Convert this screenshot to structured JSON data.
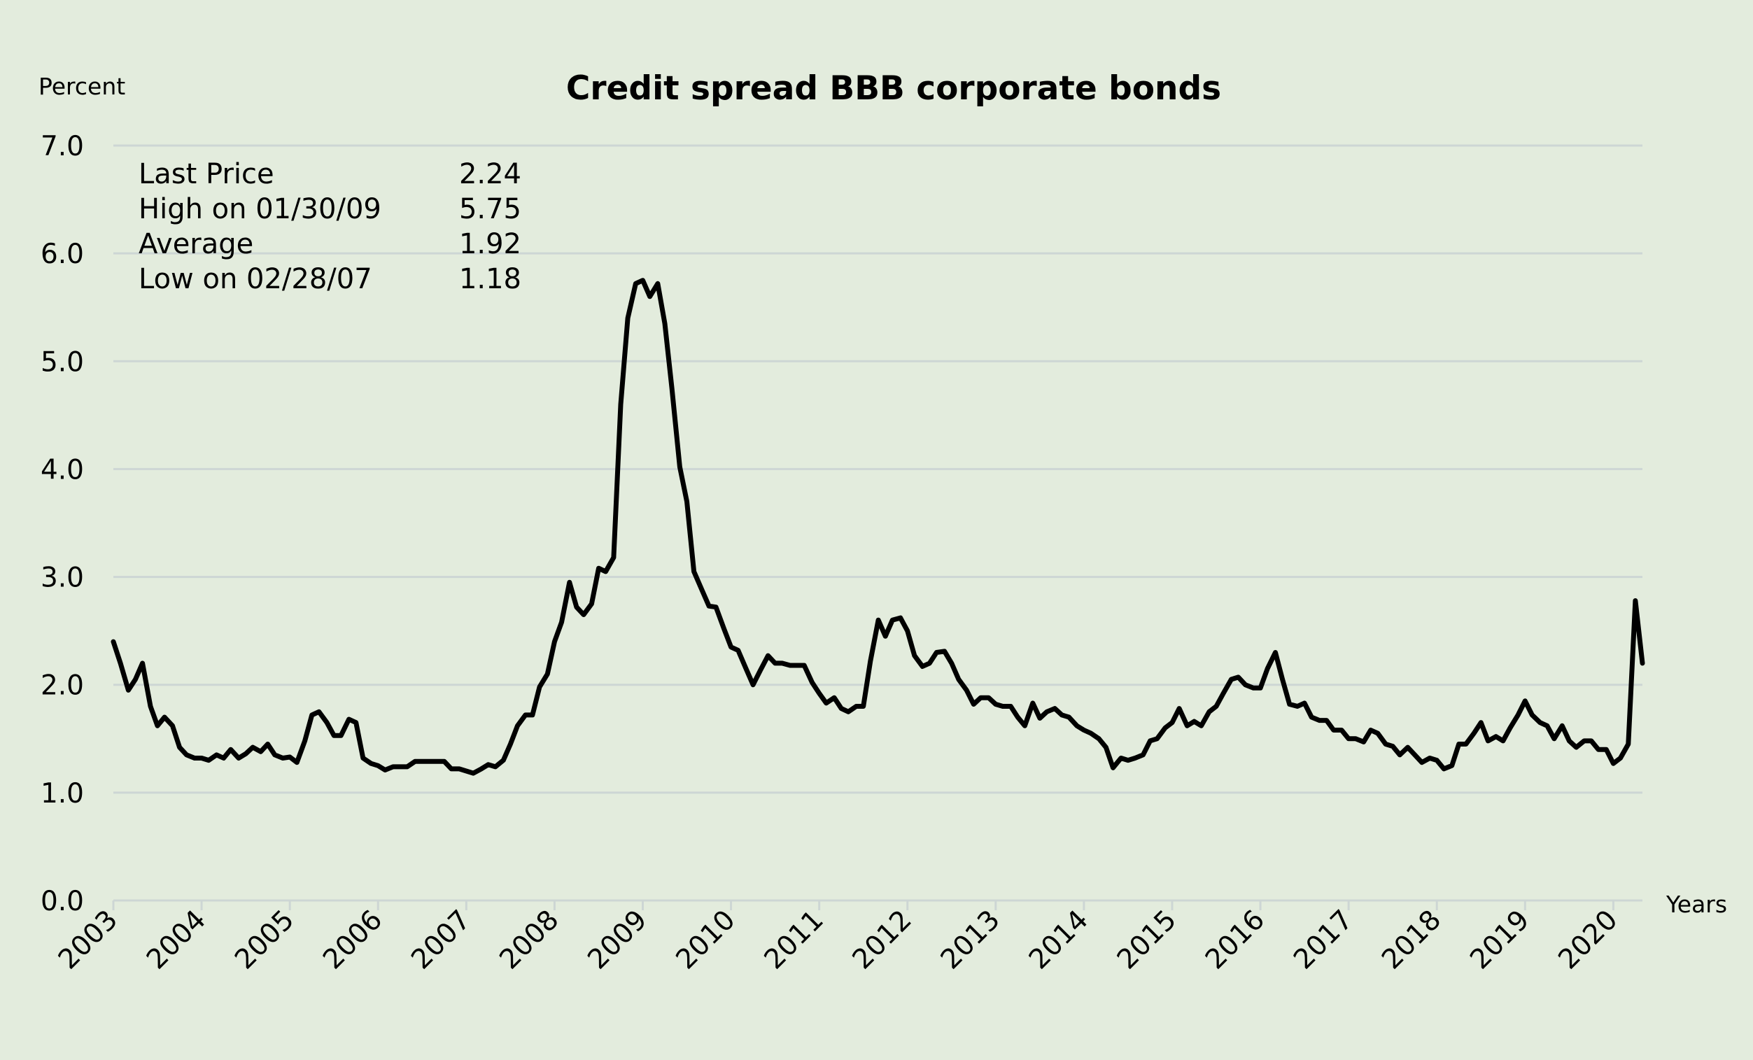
{
  "chart_data": {
    "type": "line",
    "title": "Credit spread BBB corporate bonds",
    "ylabel": "Percent",
    "xlabel": "Years",
    "ylim": [
      0,
      7
    ],
    "yticks": [
      "0.0",
      "1.0",
      "2.0",
      "3.0",
      "4.0",
      "5.0",
      "6.0",
      "7.0"
    ],
    "xlim": [
      2003,
      2020.33
    ],
    "xticks": [
      "2003",
      "2004",
      "2005",
      "2006",
      "2007",
      "2008",
      "2009",
      "2010",
      "2011",
      "2012",
      "2013",
      "2014",
      "2015",
      "2016",
      "2017",
      "2018",
      "2019",
      "2020"
    ],
    "grid": true,
    "legend": "none",
    "line_color": "#000000",
    "stats": [
      {
        "label": "Last Price",
        "value": "2.24"
      },
      {
        "label": "High on 01/30/09",
        "value": "5.75"
      },
      {
        "label": "Average",
        "value": "1.92"
      },
      {
        "label": "Low on 02/28/07",
        "value": "1.18"
      }
    ],
    "series": [
      {
        "x": [
          2003.0,
          2003.08,
          2003.17,
          2003.25,
          2003.33,
          2003.42,
          2003.5,
          2003.58,
          2003.67,
          2003.75,
          2003.83,
          2003.92,
          2004.0,
          2004.08,
          2004.17,
          2004.25,
          2004.33,
          2004.42,
          2004.5,
          2004.58,
          2004.67,
          2004.75,
          2004.83,
          2004.92,
          2005.0,
          2005.08,
          2005.17,
          2005.25,
          2005.33,
          2005.42,
          2005.5,
          2005.58,
          2005.67,
          2005.75,
          2005.83,
          2005.92,
          2006.0,
          2006.08,
          2006.17,
          2006.25,
          2006.33,
          2006.42,
          2006.5,
          2006.58,
          2006.67,
          2006.75,
          2006.83,
          2006.92,
          2007.0,
          2007.08,
          2007.17,
          2007.25,
          2007.33,
          2007.42,
          2007.5,
          2007.58,
          2007.67,
          2007.75,
          2007.83,
          2007.92,
          2008.0,
          2008.08,
          2008.17,
          2008.25,
          2008.33,
          2008.42,
          2008.5,
          2008.58,
          2008.67,
          2008.75,
          2008.83,
          2008.92,
          2009.0,
          2009.08,
          2009.17,
          2009.25,
          2009.33,
          2009.42,
          2009.5,
          2009.58,
          2009.67,
          2009.75,
          2009.83,
          2009.92,
          2010.0,
          2010.08,
          2010.17,
          2010.25,
          2010.33,
          2010.42,
          2010.5,
          2010.58,
          2010.67,
          2010.75,
          2010.83,
          2010.92,
          2011.0,
          2011.08,
          2011.17,
          2011.25,
          2011.33,
          2011.42,
          2011.5,
          2011.58,
          2011.67,
          2011.75,
          2011.83,
          2011.92,
          2012.0,
          2012.08,
          2012.17,
          2012.25,
          2012.33,
          2012.42,
          2012.5,
          2012.58,
          2012.67,
          2012.75,
          2012.83,
          2012.92,
          2013.0,
          2013.08,
          2013.17,
          2013.25,
          2013.33,
          2013.42,
          2013.5,
          2013.58,
          2013.67,
          2013.75,
          2013.83,
          2013.92,
          2014.0,
          2014.08,
          2014.17,
          2014.25,
          2014.33,
          2014.42,
          2014.5,
          2014.58,
          2014.67,
          2014.75,
          2014.83,
          2014.92,
          2015.0,
          2015.08,
          2015.17,
          2015.25,
          2015.33,
          2015.42,
          2015.5,
          2015.58,
          2015.67,
          2015.75,
          2015.83,
          2015.92,
          2016.0,
          2016.08,
          2016.17,
          2016.25,
          2016.33,
          2016.42,
          2016.5,
          2016.58,
          2016.67,
          2016.75,
          2016.83,
          2016.92,
          2017.0,
          2017.08,
          2017.17,
          2017.25,
          2017.33,
          2017.42,
          2017.5,
          2017.58,
          2017.67,
          2017.75,
          2017.83,
          2017.92,
          2018.0,
          2018.08,
          2018.17,
          2018.25,
          2018.33,
          2018.42,
          2018.5,
          2018.58,
          2018.67,
          2018.75,
          2018.83,
          2018.92,
          2019.0,
          2019.08,
          2019.17,
          2019.25,
          2019.33,
          2019.42,
          2019.5,
          2019.58,
          2019.67,
          2019.75,
          2019.83,
          2019.92,
          2020.0,
          2020.08,
          2020.17,
          2020.25,
          2020.33
        ],
        "values": [
          2.4,
          2.2,
          1.95,
          2.05,
          2.2,
          1.8,
          1.62,
          1.7,
          1.62,
          1.42,
          1.35,
          1.32,
          1.32,
          1.3,
          1.35,
          1.32,
          1.4,
          1.32,
          1.36,
          1.42,
          1.38,
          1.45,
          1.35,
          1.32,
          1.33,
          1.28,
          1.48,
          1.72,
          1.75,
          1.65,
          1.53,
          1.53,
          1.68,
          1.65,
          1.32,
          1.27,
          1.25,
          1.21,
          1.24,
          1.24,
          1.24,
          1.29,
          1.29,
          1.29,
          1.29,
          1.29,
          1.22,
          1.22,
          1.2,
          1.18,
          1.22,
          1.26,
          1.24,
          1.3,
          1.45,
          1.62,
          1.72,
          1.72,
          1.98,
          2.1,
          2.4,
          2.58,
          2.95,
          2.72,
          2.65,
          2.75,
          3.08,
          3.05,
          3.18,
          4.6,
          5.4,
          5.72,
          5.75,
          5.6,
          5.72,
          5.35,
          4.75,
          4.02,
          3.7,
          3.05,
          2.88,
          2.73,
          2.72,
          2.52,
          2.35,
          2.32,
          2.15,
          2.0,
          2.13,
          2.27,
          2.2,
          2.2,
          2.18,
          2.18,
          2.18,
          2.02,
          1.92,
          1.83,
          1.88,
          1.78,
          1.75,
          1.8,
          1.8,
          2.22,
          2.6,
          2.45,
          2.6,
          2.62,
          2.5,
          2.27,
          2.17,
          2.2,
          2.3,
          2.31,
          2.2,
          2.05,
          1.95,
          1.82,
          1.88,
          1.88,
          1.82,
          1.8,
          1.8,
          1.7,
          1.62,
          1.83,
          1.69,
          1.75,
          1.78,
          1.72,
          1.7,
          1.62,
          1.58,
          1.55,
          1.5,
          1.42,
          1.23,
          1.32,
          1.3,
          1.32,
          1.35,
          1.48,
          1.5,
          1.6,
          1.65,
          1.78,
          1.62,
          1.66,
          1.62,
          1.75,
          1.8,
          1.92,
          2.05,
          2.07,
          2.0,
          1.97,
          1.97,
          2.15,
          2.3,
          2.05,
          1.82,
          1.8,
          1.83,
          1.7,
          1.67,
          1.67,
          1.58,
          1.58,
          1.5,
          1.5,
          1.47,
          1.58,
          1.55,
          1.45,
          1.43,
          1.35,
          1.42,
          1.35,
          1.28,
          1.32,
          1.3,
          1.22,
          1.25,
          1.45,
          1.45,
          1.55,
          1.65,
          1.48,
          1.52,
          1.48,
          1.6,
          1.72,
          1.85,
          1.72,
          1.65,
          1.62,
          1.5,
          1.62,
          1.48,
          1.42,
          1.48,
          1.48,
          1.4,
          1.4,
          1.27,
          1.32,
          1.45,
          2.78,
          2.2
        ]
      }
    ]
  }
}
